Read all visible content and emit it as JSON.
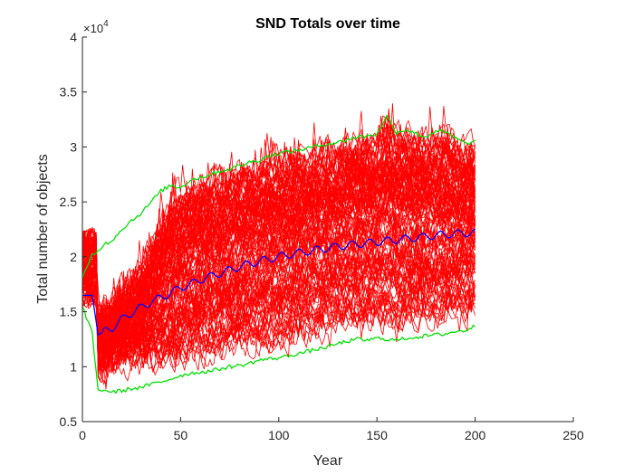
{
  "chart_data": {
    "type": "line",
    "title": "SND Totals over time",
    "xlabel": "Year",
    "ylabel": "Total number of objects",
    "xlim": [
      0,
      250
    ],
    "ylim": [
      5000,
      40000
    ],
    "x_ticks": [
      0,
      50,
      100,
      150,
      200,
      250
    ],
    "y_ticks": [
      5000,
      10000,
      15000,
      20000,
      25000,
      30000,
      35000,
      40000
    ],
    "x_tick_labels": [
      "0",
      "50",
      "100",
      "150",
      "200",
      "250"
    ],
    "y_tick_labels": [
      "0.5",
      "1",
      "1.5",
      "2",
      "2.5",
      "3",
      "3.5",
      "4"
    ],
    "y_exponent_label": "×10",
    "y_exponent_power": "4",
    "grid": false,
    "colors": {
      "runs": "#ff0000",
      "mean": "#0000ff",
      "bounds": "#00e000",
      "axis": "#262626"
    },
    "monte_carlo_runs": {
      "count": 120,
      "x_start": 0,
      "x_end": 200,
      "initial_range": [
        16000,
        22000
      ],
      "drop_year": 8,
      "post_drop_range": [
        10000,
        15000
      ],
      "final_range": [
        15000,
        30000
      ]
    },
    "series": [
      {
        "name": "mean",
        "color": "#0000ff",
        "x": [
          0,
          5,
          8,
          10,
          15,
          20,
          25,
          30,
          35,
          40,
          45,
          50,
          55,
          60,
          65,
          70,
          75,
          80,
          85,
          90,
          95,
          100,
          105,
          110,
          115,
          120,
          125,
          130,
          135,
          140,
          145,
          150,
          155,
          160,
          165,
          170,
          175,
          180,
          185,
          190,
          195,
          200
        ],
        "values": [
          16500,
          16500,
          12900,
          13100,
          13500,
          14300,
          14900,
          15400,
          15900,
          16300,
          16700,
          17200,
          17500,
          17900,
          18200,
          18500,
          18800,
          19100,
          19350,
          19600,
          19800,
          20000,
          20200,
          20350,
          20500,
          20650,
          20800,
          20950,
          21050,
          21150,
          21250,
          21350,
          21450,
          21550,
          21650,
          21750,
          21850,
          21950,
          22050,
          22100,
          22150,
          22200
        ]
      },
      {
        "name": "upper bound",
        "color": "#00e000",
        "x": [
          0,
          5,
          8,
          10,
          15,
          20,
          25,
          30,
          35,
          40,
          45,
          50,
          55,
          60,
          65,
          70,
          75,
          80,
          85,
          90,
          95,
          100,
          105,
          110,
          115,
          120,
          125,
          130,
          135,
          140,
          145,
          150,
          155,
          160,
          165,
          170,
          175,
          180,
          185,
          190,
          195,
          200
        ],
        "values": [
          18000,
          20200,
          20500,
          21000,
          21500,
          22500,
          23300,
          24000,
          25000,
          26000,
          26500,
          26300,
          27000,
          27200,
          27500,
          27800,
          28000,
          28300,
          28600,
          28800,
          29200,
          29400,
          29600,
          29700,
          29900,
          30100,
          30300,
          30400,
          30700,
          30900,
          31000,
          31200,
          32800,
          31300,
          31600,
          31200,
          30900,
          31500,
          31300,
          30800,
          30300,
          30500
        ]
      },
      {
        "name": "lower bound",
        "color": "#00e000",
        "x": [
          0,
          5,
          8,
          10,
          15,
          20,
          25,
          30,
          35,
          40,
          45,
          50,
          55,
          60,
          65,
          70,
          75,
          80,
          85,
          90,
          95,
          100,
          105,
          110,
          115,
          120,
          125,
          130,
          135,
          140,
          145,
          150,
          155,
          160,
          165,
          170,
          175,
          180,
          185,
          190,
          195,
          200
        ],
        "values": [
          15500,
          13000,
          7800,
          7900,
          7700,
          7800,
          8000,
          8100,
          8400,
          8600,
          8900,
          9200,
          9400,
          9500,
          9600,
          9800,
          10000,
          10100,
          10300,
          10600,
          10700,
          10800,
          11000,
          11200,
          11400,
          11600,
          11800,
          12100,
          12300,
          12500,
          12400,
          12600,
          12500,
          12400,
          12600,
          12700,
          12800,
          12900,
          13000,
          13200,
          13300,
          13700
        ]
      }
    ]
  }
}
